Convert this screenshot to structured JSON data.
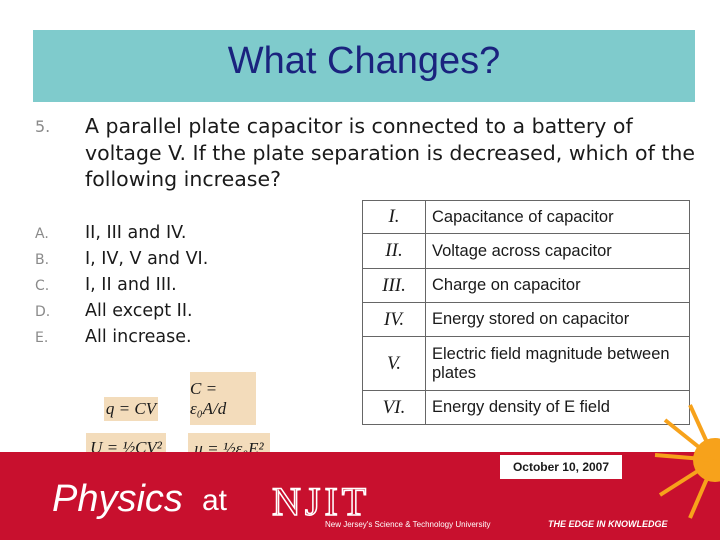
{
  "header": {
    "title": "What Changes?"
  },
  "question": {
    "number": "5.",
    "text": "A parallel plate capacitor is connected to a battery of voltage V.  If the plate separation is decreased, which of the following increase?"
  },
  "options": [
    {
      "letter": "A.",
      "text": "II, III and IV."
    },
    {
      "letter": "B.",
      "text": "I, IV, V and VI."
    },
    {
      "letter": "C.",
      "text": "I, II and III."
    },
    {
      "letter": "D.",
      "text": "All except II."
    },
    {
      "letter": "E.",
      "text": "All increase."
    }
  ],
  "table": {
    "rows": [
      [
        "I.",
        "Capacitance of capacitor"
      ],
      [
        "II.",
        "Voltage across capacitor"
      ],
      [
        "III.",
        "Charge on capacitor"
      ],
      [
        "IV.",
        "Energy stored on capacitor"
      ],
      [
        "V.",
        "Electric field magnitude between plates"
      ],
      [
        "VI.",
        "Energy density of E field"
      ]
    ]
  },
  "formulas": [
    "q = CV",
    "C = ε₀A/d",
    "U = ½CV²",
    "u = ½ε₀E²"
  ],
  "footer": {
    "date": "October 10, 2007",
    "logo_physics": "Physics",
    "logo_at": "at",
    "logo_njit": "NJIT",
    "tagline": "New Jersey's Science & Technology University",
    "slogan": "THE EDGE IN KNOWLEDGE"
  }
}
